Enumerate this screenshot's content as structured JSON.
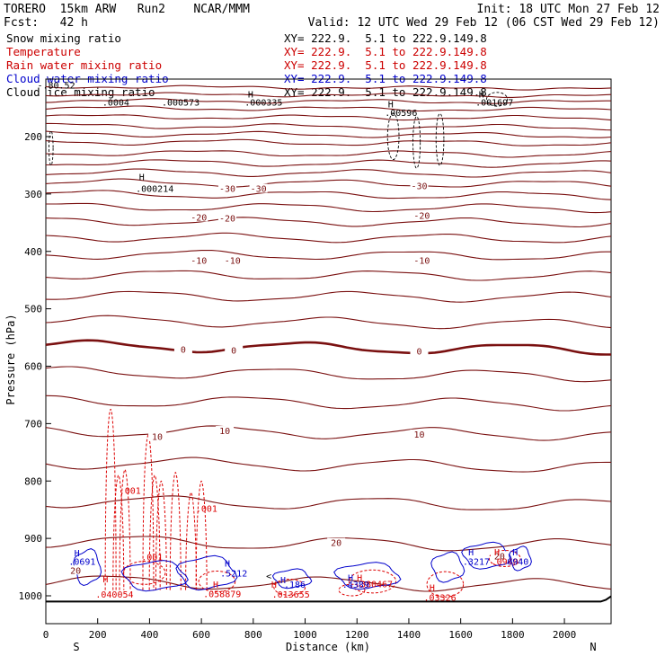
{
  "header": {
    "run_title": "TORERO  15km ARW   Run2    NCAR/MMM",
    "init": "Init: 18 UTC Mon 27 Feb 12",
    "fcst": "Fcst:   42 h",
    "valid": "Valid: 12 UTC Wed 29 Feb 12 (06 CST Wed 29 Feb 12)"
  },
  "legend": [
    {
      "label": "Snow mixing ratio",
      "xy": "XY= 222.9.  5.1 to 222.9.149.8",
      "color": "#000000"
    },
    {
      "label": "Temperature",
      "xy": "XY= 222.9.  5.1 to 222.9.149.8",
      "color": "#cc0000"
    },
    {
      "label": "Rain water mixing ratio",
      "xy": "XY= 222.9.  5.1 to 222.9.149.8",
      "color": "#cc0000"
    },
    {
      "label": "Cloud water mixing ratio",
      "xy": "XY= 222.9.  5.1 to 222.9.149.8",
      "color": "#0000cc"
    },
    {
      "label": "Cloud ice mixing ratio",
      "xy": "XY= 222.9.  5.1 to 222.9.149.8",
      "color": "#000000"
    }
  ],
  "colors": {
    "temperature": "#7a1010",
    "freezing": "#7a1010",
    "rain": "#dd0000",
    "cloud_water": "#0000cc",
    "snow": "#000000",
    "ground": "#000000"
  },
  "chart_data": {
    "type": "cross-section",
    "xlabel": "Distance (km)",
    "ylabel": "Pressure (hPa)",
    "xlim": [
      0,
      2180
    ],
    "ylim": [
      1050,
      100
    ],
    "x_ticks": [
      0,
      200,
      400,
      600,
      800,
      1000,
      1200,
      1400,
      1600,
      1800,
      2000
    ],
    "y_ticks": [
      200,
      300,
      400,
      500,
      600,
      700,
      800,
      900,
      1000
    ],
    "x_endpoints": {
      "left": "S",
      "right": "N"
    },
    "temperature_isotherms_pressure": [
      113,
      126,
      137,
      150,
      165,
      181,
      195,
      209,
      228,
      245,
      262,
      280,
      300,
      322,
      347,
      375,
      405,
      440,
      477,
      520,
      564,
      610,
      660,
      712,
      768,
      835,
      905,
      975
    ],
    "temperature_labels": [
      {
        "text": "-30",
        "x": 700,
        "p": 290
      },
      {
        "text": "-30",
        "x": 820,
        "p": 290
      },
      {
        "text": "-30",
        "x": 1440,
        "p": 285
      },
      {
        "text": "-20",
        "x": 590,
        "p": 340
      },
      {
        "text": "-20",
        "x": 700,
        "p": 342
      },
      {
        "text": "-20",
        "x": 1450,
        "p": 337
      },
      {
        "text": "-10",
        "x": 590,
        "p": 415
      },
      {
        "text": "-10",
        "x": 720,
        "p": 415
      },
      {
        "text": "-10",
        "x": 1450,
        "p": 415
      },
      {
        "text": "0",
        "x": 530,
        "p": 570
      },
      {
        "text": "0",
        "x": 725,
        "p": 572
      },
      {
        "text": "0",
        "x": 1440,
        "p": 573
      },
      {
        "text": "10",
        "x": 430,
        "p": 722
      },
      {
        "text": "10",
        "x": 690,
        "p": 712
      },
      {
        "text": "10",
        "x": 1440,
        "p": 718
      },
      {
        "text": "20",
        "x": 115,
        "p": 955
      },
      {
        "text": "20",
        "x": 1120,
        "p": 907
      },
      {
        "text": "20",
        "x": 1750,
        "p": 930
      }
    ],
    "snow_maxima": [
      {
        "text": ".0004",
        "x": 270,
        "p": 140
      },
      {
        "text": ".000573",
        "x": 520,
        "p": 140
      },
      {
        "text": ".000335",
        "x": 840,
        "p": 140
      },
      {
        "text": ".00596",
        "x": 1370,
        "p": 158
      },
      {
        "text": ".001697",
        "x": 1730,
        "p": 140
      },
      {
        "text": ".000214",
        "x": 420,
        "p": 290
      },
      {
        "text": "-.80.52",
        "x": 40,
        "p": 110
      }
    ],
    "rain_labels": [
      {
        "text": ".001",
        "x": 325,
        "p": 816
      },
      {
        "text": ".001",
        "x": 620,
        "p": 847
      },
      {
        "text": ".001",
        "x": 410,
        "p": 932
      },
      {
        "text": ".040054",
        "x": 265,
        "p": 997
      },
      {
        "text": ".058879",
        "x": 680,
        "p": 996
      },
      {
        "text": ".013655",
        "x": 945,
        "p": 997
      },
      {
        "text": ".380467",
        "x": 1265,
        "p": 979
      },
      {
        "text": ".03326",
        "x": 1520,
        "p": 1002
      },
      {
        "text": ".0940",
        "x": 1770,
        "p": 940
      }
    ],
    "cloud_labels": [
      {
        "text": ".0691",
        "x": 140,
        "p": 940
      },
      {
        "text": ".5212",
        "x": 725,
        "p": 960
      },
      {
        "text": ".186",
        "x": 960,
        "p": 980
      },
      {
        "text": ".4389",
        "x": 1195,
        "p": 980
      },
      {
        "text": ".3217",
        "x": 1660,
        "p": 940
      },
      {
        "text": ".0940",
        "x": 1810,
        "p": 940
      }
    ],
    "h_markers": [
      {
        "x": 120,
        "p": 925,
        "series": "cloud"
      },
      {
        "x": 230,
        "p": 970,
        "series": "rain"
      },
      {
        "x": 700,
        "p": 943,
        "series": "cloud"
      },
      {
        "x": 655,
        "p": 980,
        "series": "rain"
      },
      {
        "x": 915,
        "p": 972,
        "series": "cloud"
      },
      {
        "x": 880,
        "p": 980,
        "series": "rain"
      },
      {
        "x": 1175,
        "p": 968,
        "series": "cloud"
      },
      {
        "x": 1210,
        "p": 968,
        "series": "rain"
      },
      {
        "x": 1490,
        "p": 985,
        "series": "rain"
      },
      {
        "x": 1640,
        "p": 923,
        "series": "cloud"
      },
      {
        "x": 1740,
        "p": 923,
        "series": "rain"
      },
      {
        "x": 1810,
        "p": 923,
        "series": "cloud"
      },
      {
        "x": 370,
        "p": 270,
        "series": "snow"
      },
      {
        "x": 790,
        "p": 126,
        "series": "snow"
      },
      {
        "x": 1330,
        "p": 143,
        "series": "snow"
      },
      {
        "x": 1680,
        "p": 126,
        "series": "snow"
      }
    ],
    "h_letter": "H",
    "less_than_marker": {
      "text": "<",
      "x": 860,
      "p": 965
    }
  }
}
